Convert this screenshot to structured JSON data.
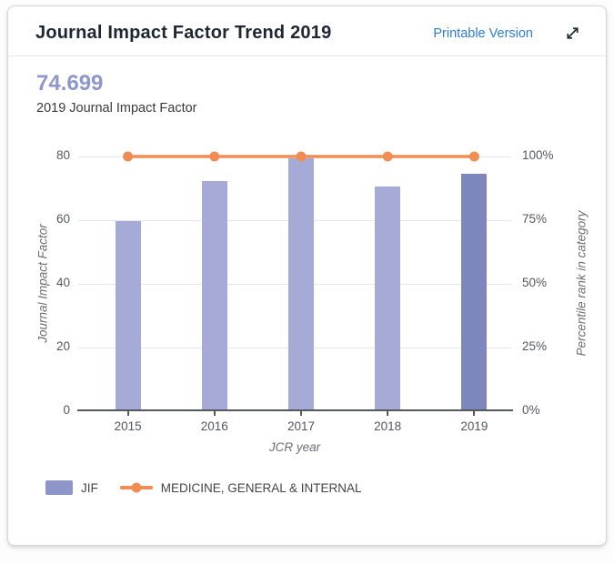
{
  "header": {
    "title": "Journal Impact Factor Trend 2019",
    "printable_link": "Printable Version"
  },
  "summary": {
    "value": "74.699",
    "caption": "2019 Journal Impact Factor"
  },
  "chart_data": {
    "type": "bar",
    "title": "Journal Impact Factor Trend 2019",
    "categories": [
      "2015",
      "2016",
      "2017",
      "2018",
      "2019"
    ],
    "series": [
      {
        "name": "JIF",
        "type": "bar",
        "axis": "left",
        "values": [
          59.6,
          72.4,
          79.3,
          70.7,
          74.699
        ],
        "color": "#a5abd6",
        "current_year_color": "#7d87bd",
        "highlight_last": true
      },
      {
        "name": "MEDICINE, GENERAL & INTERNAL",
        "type": "line",
        "axis": "right",
        "values": [
          100,
          100,
          100,
          100,
          100
        ],
        "color": "#ef8d55"
      }
    ],
    "xlabel": "JCR year",
    "ylabel_left": "Journal Impact Factor",
    "ylabel_right": "Percentile rank in category",
    "yticks_left": [
      0,
      20,
      40,
      60,
      80
    ],
    "yticks_right": [
      "0%",
      "25%",
      "50%",
      "75%",
      "100%"
    ],
    "ylim_left": [
      0,
      80
    ],
    "ylim_right": [
      0,
      100
    ],
    "grid": true,
    "legend_position": "bottom"
  },
  "legend": {
    "items": [
      {
        "label": "JIF",
        "marker": "square",
        "color": "#8d95c9"
      },
      {
        "label": "MEDICINE, GENERAL & INTERNAL",
        "marker": "line-dot",
        "color": "#ef8d55"
      }
    ]
  },
  "colors": {
    "link_blue": "#2b7ce0",
    "title_text": "#1d2733",
    "big_number": "#8e97cd",
    "axis_text": "#54585c",
    "grid_line": "#e3e5f1",
    "axis_line": "#55585c"
  }
}
